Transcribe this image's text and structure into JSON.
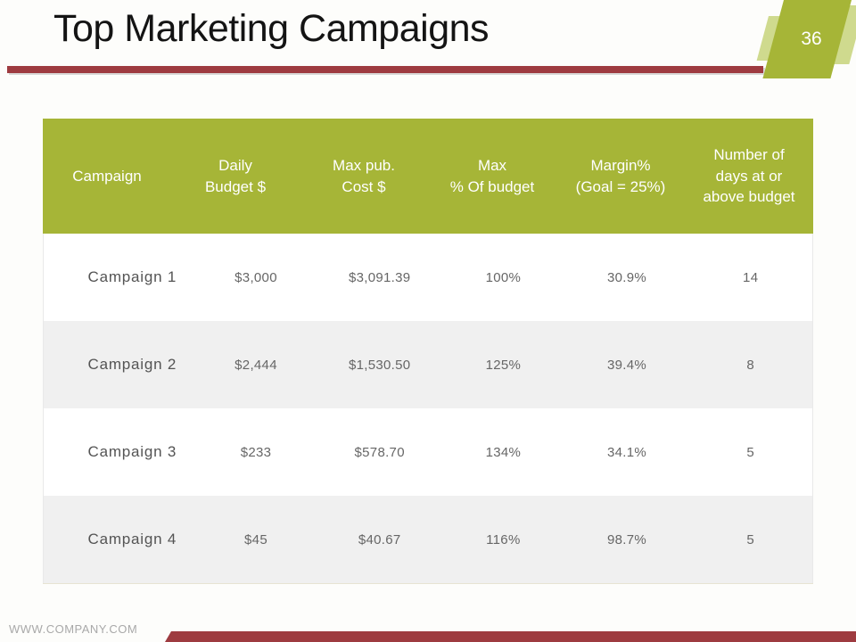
{
  "slide": {
    "title": "Top Marketing Campaigns",
    "page_number": "36",
    "footer_url": "WWW.COMPANY.COM"
  },
  "colors": {
    "accent_green": "#a6b537",
    "accent_green_light": "#cfda8e",
    "accent_maroon": "#9e3b40",
    "row_alt_background": "#f0f0f0",
    "header_text": "#ffffff",
    "body_text": "#666666"
  },
  "table": {
    "columns": [
      "Campaign",
      "Daily\nBudget $",
      "Max pub.\nCost $",
      "Max\n% Of budget",
      "Margin%\n(Goal = 25%)",
      "Number of\ndays at or\nabove budget"
    ],
    "rows": [
      [
        "Campaign 1",
        "$3,000",
        "$3,091.39",
        "100%",
        "30.9%",
        "14"
      ],
      [
        "Campaign 2",
        "$2,444",
        "$1,530.50",
        "125%",
        "39.4%",
        "8"
      ],
      [
        "Campaign 3",
        "$233",
        "$578.70",
        "134%",
        "34.1%",
        "5"
      ],
      [
        "Campaign 4",
        "$45",
        "$40.67",
        "116%",
        "98.7%",
        "5"
      ]
    ]
  }
}
